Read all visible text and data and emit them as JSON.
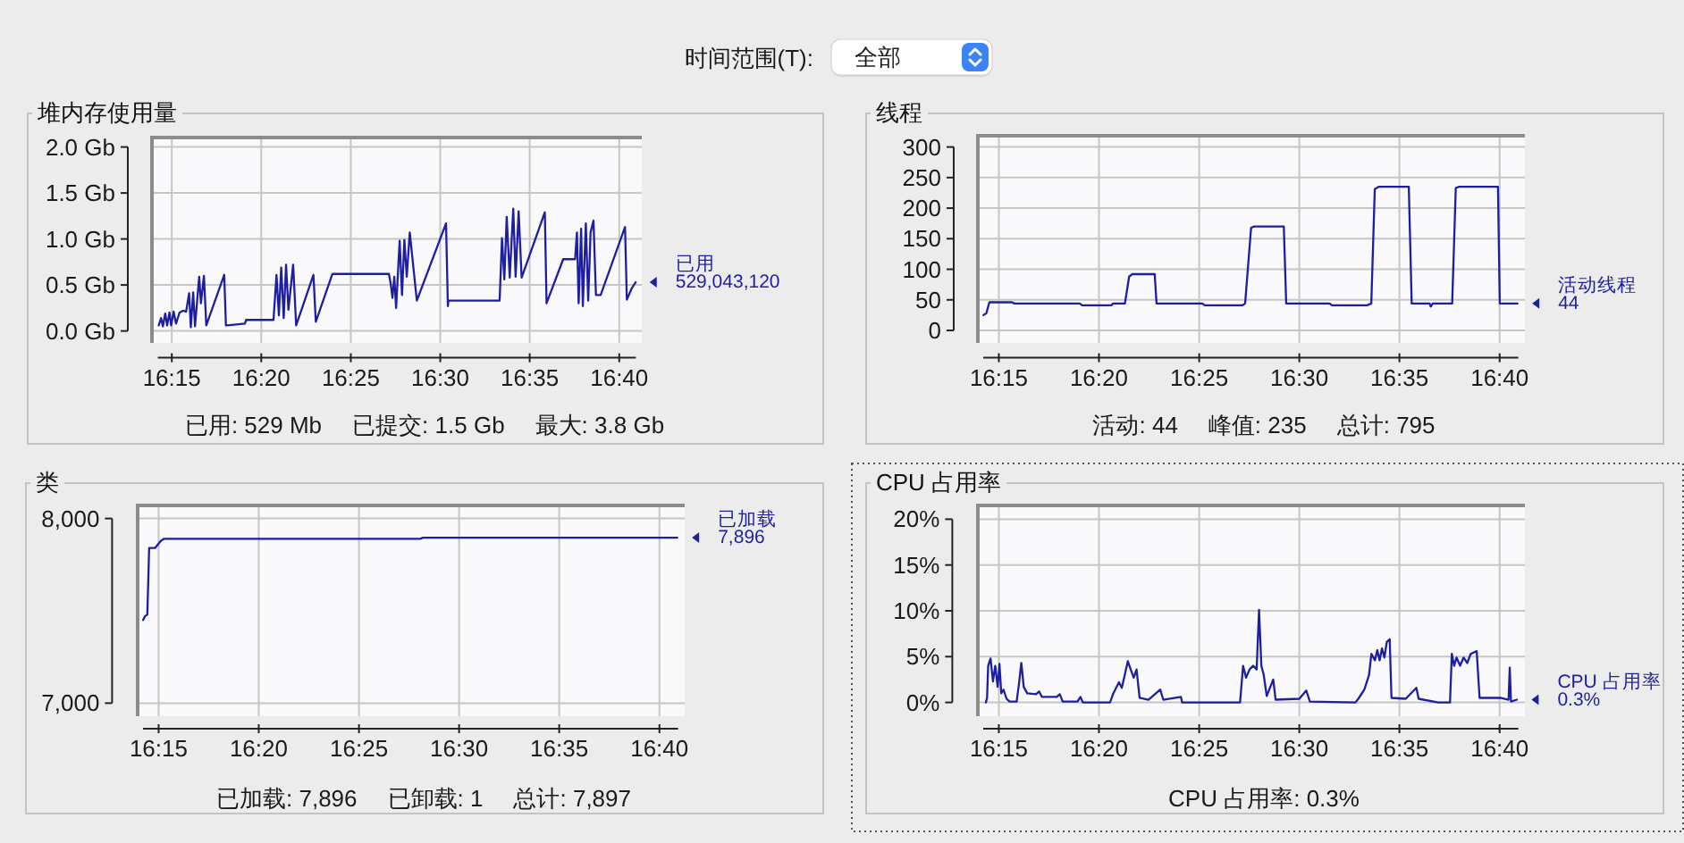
{
  "chart_data": [
    {
      "type": "other",
      "annotations": [
        "时间范围(T):",
        "全部"
      ]
    },
    {
      "type": "line",
      "title": "堆内存使用量",
      "x": [
        16.2378,
        16.24,
        16.2417,
        16.2439,
        16.2456,
        16.2478,
        16.2494,
        16.2517,
        16.2539,
        16.2572,
        16.2605,
        16.2633,
        16.2661,
        16.2677,
        16.2699,
        16.2716,
        16.2755,
        16.2771,
        16.2799,
        16.2821,
        16.2988,
        16.3004,
        16.3181,
        16.3193,
        16.3447,
        16.3475,
        16.3497,
        16.3519,
        16.3542,
        16.3564,
        16.3586,
        16.363,
        16.3658,
        16.3819,
        16.3841,
        16.3996,
        16.4522,
        16.4539,
        16.4555,
        16.4572,
        16.4589,
        16.4622,
        16.4644,
        16.4666,
        16.4688,
        16.4716,
        16.4782,
        16.5054,
        16.5071,
        16.5076,
        16.5553,
        16.5575,
        16.5597,
        16.5619,
        16.5647,
        16.568,
        16.5702,
        16.573,
        16.5758,
        16.5974,
        16.599,
        16.6145,
        16.6256,
        16.6273,
        16.6289,
        16.6312,
        16.6328,
        16.6356,
        16.6378,
        16.64,
        16.6427,
        16.645,
        16.6494,
        16.6721,
        16.6738,
        16.6782,
        16.682
      ],
      "series": [
        {
          "name": "已用",
          "color": "#1e1ea0",
          "values": [
            0.06,
            0.14,
            0.05,
            0.19,
            0.06,
            0.2,
            0.06,
            0.21,
            0.08,
            0.2,
            0.22,
            0.21,
            0.41,
            0.04,
            0.42,
            0.05,
            0.59,
            0.3,
            0.6,
            0.06,
            0.61,
            0.06,
            0.08,
            0.12,
            0.12,
            0.61,
            0.17,
            0.69,
            0.14,
            0.72,
            0.23,
            0.72,
            0.06,
            0.61,
            0.1,
            0.62,
            0.62,
            0.51,
            0.36,
            0.59,
            0.25,
            0.98,
            0.39,
            0.99,
            0.59,
            1.07,
            0.33,
            1.17,
            0.27,
            0.33,
            0.33,
            1.01,
            0.56,
            1.24,
            0.58,
            1.33,
            0.59,
            1.3,
            0.58,
            1.29,
            0.3,
            0.78,
            0.78,
            1.07,
            0.3,
            1.11,
            0.27,
            1.17,
            0.33,
            1.07,
            1.2,
            0.39,
            0.39,
            1.13,
            0.34,
            0.46,
            0.53
          ]
        }
      ],
      "xlim": [
        16.237,
        16.6822
      ],
      "xticks": [
        {
          "value": 16.25,
          "label": "16:15"
        },
        {
          "value": 16.3333,
          "label": "16:20"
        },
        {
          "value": 16.4167,
          "label": "16:25"
        },
        {
          "value": 16.5,
          "label": "16:30"
        },
        {
          "value": 16.5833,
          "label": "16:35"
        },
        {
          "value": 16.6667,
          "label": "16:40"
        }
      ],
      "ylim": [
        0,
        2
      ],
      "yticks": [
        {
          "value": 0,
          "label": "0.0 Gb"
        },
        {
          "value": 0.5,
          "label": "0.5 Gb"
        },
        {
          "value": 1,
          "label": "1.0 Gb"
        },
        {
          "value": 1.5,
          "label": "1.5 Gb"
        },
        {
          "value": 2,
          "label": "2.0 Gb"
        }
      ],
      "grid": true,
      "annotations": [
        {
          "text": "529,043,120",
          "x": 16.682,
          "y": 0.53
        },
        "已用: 529 Mb",
        "已提交: 1.5 Gb",
        "最大: 3.8 Gb"
      ]
    },
    {
      "type": "line",
      "title": "线程",
      "x": [
        16.2371,
        16.2396,
        16.2421,
        16.2609,
        16.2629,
        16.3173,
        16.3193,
        16.3436,
        16.345,
        16.3549,
        16.3584,
        16.3609,
        16.3797,
        16.3812,
        16.4193,
        16.4213,
        16.4525,
        16.4549,
        16.4599,
        16.4624,
        16.4871,
        16.4891,
        16.5252,
        16.5272,
        16.5564,
        16.5599,
        16.5628,
        16.5663,
        16.5911,
        16.5935,
        16.6084,
        16.6094,
        16.6109,
        16.6272,
        16.6302,
        16.6331,
        16.6653,
        16.6668,
        16.6816
      ],
      "series": [
        {
          "name": "活动线程",
          "color": "#1e1ea0",
          "values": [
            25,
            28,
            46,
            46,
            44,
            44,
            41,
            41,
            44,
            44,
            88,
            92,
            92,
            44,
            44,
            41,
            41,
            44,
            168,
            170,
            170,
            44,
            44,
            41,
            41,
            44,
            231,
            235,
            235,
            44,
            44,
            39,
            44,
            44,
            233,
            235,
            235,
            44,
            44
          ]
        }
      ],
      "xlim": [
        16.237,
        16.6822
      ],
      "xticks": [
        {
          "value": 16.25,
          "label": "16:15"
        },
        {
          "value": 16.3333,
          "label": "16:20"
        },
        {
          "value": 16.4167,
          "label": "16:25"
        },
        {
          "value": 16.5,
          "label": "16:30"
        },
        {
          "value": 16.5833,
          "label": "16:35"
        },
        {
          "value": 16.6667,
          "label": "16:40"
        }
      ],
      "ylim": [
        0,
        300
      ],
      "yticks": [
        0,
        50,
        100,
        150,
        200,
        250,
        300
      ],
      "grid": true,
      "annotations": [
        {
          "text": "44",
          "x": 16.6816,
          "y": 44
        },
        "活动: 44",
        "峰值: 235",
        "总计: 795"
      ]
    },
    {
      "type": "line",
      "title": "类",
      "x": [
        16.2371,
        16.2386,
        16.2406,
        16.2421,
        16.247,
        16.2495,
        16.252,
        16.2545,
        16.4678,
        16.4698,
        16.6816
      ],
      "series": [
        {
          "name": "已加载",
          "color": "#1e1ea0",
          "values": [
            7450,
            7470,
            7480,
            7840,
            7840,
            7860,
            7880,
            7890,
            7890,
            7896,
            7896
          ]
        }
      ],
      "xlim": [
        16.237,
        16.6822
      ],
      "xticks": [
        {
          "value": 16.25,
          "label": "16:15"
        },
        {
          "value": 16.3333,
          "label": "16:20"
        },
        {
          "value": 16.4167,
          "label": "16:25"
        },
        {
          "value": 16.5,
          "label": "16:30"
        },
        {
          "value": 16.5833,
          "label": "16:35"
        },
        {
          "value": 16.6667,
          "label": "16:40"
        }
      ],
      "ylim": [
        7000,
        8000
      ],
      "yticks": [
        {
          "value": 7000,
          "label": "7,000"
        },
        {
          "value": 8000,
          "label": "8,000"
        }
      ],
      "grid": true,
      "annotations": [
        {
          "text": "7,896",
          "x": 16.6816,
          "y": 7896
        },
        "已加载: 7,896",
        "已卸载: 1",
        "总计: 7,897"
      ]
    },
    {
      "type": "line",
      "title": "CPU 占用率",
      "x": [
        16.2392,
        16.2402,
        16.2411,
        16.2431,
        16.2451,
        16.247,
        16.249,
        16.2505,
        16.252,
        16.2539,
        16.2564,
        16.2589,
        16.2648,
        16.2667,
        16.2687,
        16.2707,
        16.2736,
        16.281,
        16.2835,
        16.2859,
        16.2982,
        16.3007,
        16.3031,
        16.3154,
        16.3179,
        16.3199,
        16.3425,
        16.345,
        16.3499,
        16.3523,
        16.3548,
        16.3573,
        16.3597,
        16.3622,
        16.3646,
        16.3671,
        16.3745,
        16.3843,
        16.3868,
        16.4015,
        16.4025,
        16.4507,
        16.4532,
        16.4557,
        16.4586,
        16.4616,
        16.4645,
        16.4665,
        16.4684,
        16.4704,
        16.4729,
        16.4783,
        16.4803,
        16.5,
        16.5058,
        16.5088,
        16.5467,
        16.5491,
        16.5541,
        16.558,
        16.56,
        16.5629,
        16.5649,
        16.5668,
        16.5688,
        16.5708,
        16.5728,
        16.5752,
        16.5767,
        16.5885,
        16.5974,
        16.5993,
        16.6156,
        16.6254,
        16.6269,
        16.6288,
        16.6308,
        16.6338,
        16.6367,
        16.6397,
        16.6426,
        16.6476,
        16.65,
        16.6672,
        16.6741,
        16.6751,
        16.6761,
        16.681
      ],
      "series": [
        {
          "name": "CPU 占用率",
          "color": "#1e1ea0",
          "values": [
            0,
            0.5,
            4.0,
            4.8,
            2.3,
            4.0,
            1.7,
            4.2,
            1.0,
            1.4,
            0.4,
            0.1,
            0.1,
            2.0,
            4.3,
            1.7,
            1.0,
            0.9,
            1.2,
            0.6,
            0.6,
            0.9,
            0.1,
            0.1,
            0.6,
            0,
            0,
            0.9,
            2.2,
            1.6,
            3.0,
            4.5,
            3.6,
            2.7,
            3.6,
            0.5,
            0.3,
            1.4,
            0.3,
            0.6,
            0,
            0,
            4.0,
            2.7,
            3.6,
            4.0,
            3.6,
            10.1,
            4.0,
            3.0,
            0.7,
            2.5,
            0.3,
            0.4,
            1.3,
            0.1,
            0,
            0.4,
            1.4,
            3.0,
            5.3,
            4.6,
            5.7,
            4.6,
            5.9,
            4.9,
            6.6,
            6.9,
            0.5,
            0.4,
            1.6,
            0.4,
            0,
            0,
            5.3,
            4.0,
            4.9,
            4.0,
            4.9,
            4.3,
            5.3,
            5.6,
            0.5,
            0.5,
            0.3,
            3.8,
            0.1,
            0.3
          ]
        }
      ],
      "xlim": [
        16.237,
        16.6822
      ],
      "xticks": [
        {
          "value": 16.25,
          "label": "16:15"
        },
        {
          "value": 16.3333,
          "label": "16:20"
        },
        {
          "value": 16.4167,
          "label": "16:25"
        },
        {
          "value": 16.5,
          "label": "16:30"
        },
        {
          "value": 16.5833,
          "label": "16:35"
        },
        {
          "value": 16.6667,
          "label": "16:40"
        }
      ],
      "ylim": [
        0,
        20
      ],
      "yticks": [
        {
          "value": 0,
          "label": "0%"
        },
        {
          "value": 5,
          "label": "5%"
        },
        {
          "value": 10,
          "label": "10%"
        },
        {
          "value": 15,
          "label": "15%"
        },
        {
          "value": 20,
          "label": "20%"
        }
      ],
      "grid": true,
      "annotations": [
        {
          "text": "0.3%",
          "x": 16.681,
          "y": 0.3
        },
        "CPU 占用率: 0.3%"
      ]
    }
  ]
}
